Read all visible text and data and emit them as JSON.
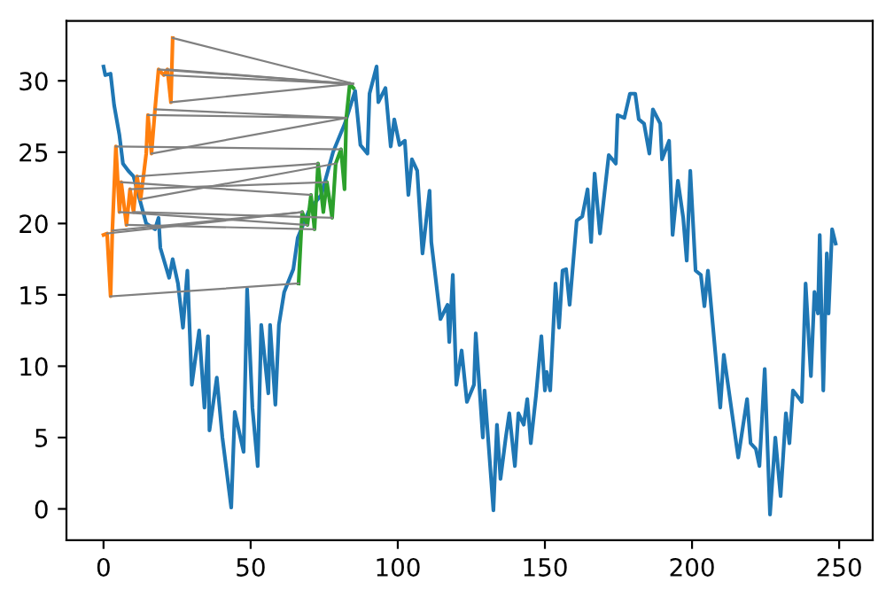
{
  "chart_data": {
    "type": "line",
    "xlim": [
      -12.6,
      261.4
    ],
    "ylim": [
      -2.2,
      34.2
    ],
    "xticks": [
      0,
      50,
      100,
      150,
      200,
      250
    ],
    "yticks": [
      0,
      5,
      10,
      15,
      20,
      25,
      30
    ],
    "grid": false,
    "marker": "none",
    "line_style": "solid",
    "series": [
      {
        "color": "#1f77b4",
        "x": [
          0,
          0.6,
          2.4,
          3.6,
          5.4,
          6.6,
          8.4,
          10.2,
          14.5,
          17.5,
          18.7,
          19.3,
          22.3,
          23.5,
          25.3,
          27,
          28.5,
          30,
          32.5,
          34.3,
          35.5,
          36,
          38.5,
          40.4,
          43.4,
          44.6,
          47.6,
          48.8,
          50.6,
          52.4,
          53.6,
          56,
          56.6,
          58.4,
          59.6,
          61.4,
          64.5,
          66,
          70,
          74,
          78,
          82,
          85.5,
          87.3,
          89.7,
          90.4,
          92.8,
          93.4,
          95.8,
          97.6,
          98.8,
          100.6,
          102.4,
          103.6,
          104.8,
          106.6,
          108.4,
          110.8,
          111.4,
          114.5,
          116.9,
          117.5,
          118.7,
          119.9,
          121.7,
          123.5,
          125.9,
          126.5,
          128.9,
          129.5,
          132.5,
          133.7,
          134.9,
          136.7,
          137.9,
          139.8,
          141,
          142.8,
          144,
          145.2,
          147,
          148.8,
          150,
          150.6,
          151.8,
          153.6,
          154.8,
          156,
          157.2,
          158.4,
          160.8,
          162.7,
          164.5,
          165.7,
          166.9,
          168.7,
          171.7,
          174.1,
          174.7,
          177,
          178.9,
          180.7,
          181.9,
          183.7,
          185.5,
          186.7,
          189.2,
          189.8,
          192.2,
          193.4,
          195.2,
          197,
          198.2,
          199.4,
          201.2,
          203,
          204.2,
          205.4,
          209.6,
          210.8,
          215.7,
          218.7,
          219.9,
          221.7,
          222.9,
          224.7,
          226.5,
          228.3,
          230.1,
          231.9,
          233.1,
          234.3,
          237.3,
          238.6,
          240.4,
          241.6,
          242.8,
          243.4,
          244.6,
          245.8,
          246.4,
          247.6,
          248.8
        ],
        "values": [
          31,
          30.4,
          30.5,
          28.3,
          26.2,
          24.2,
          23.7,
          23.3,
          20,
          19.6,
          20.4,
          18.3,
          16.2,
          17.5,
          15.8,
          12.7,
          16.7,
          8.7,
          12.5,
          7.1,
          12.1,
          5.5,
          9.2,
          5.0,
          0.1,
          6.8,
          4.0,
          15.4,
          7.1,
          3.0,
          12.9,
          8.1,
          12.9,
          7.3,
          12.9,
          15.2,
          16.8,
          19,
          21,
          22,
          25,
          27,
          29.3,
          25.5,
          24.9,
          29.1,
          31.0,
          28.5,
          29.5,
          25.4,
          27.3,
          25.5,
          25.8,
          22.0,
          24.5,
          23.7,
          17.9,
          22.3,
          18.7,
          13.3,
          14.3,
          11.7,
          16.4,
          8.7,
          11.1,
          7.5,
          8.7,
          12.3,
          5.0,
          8.3,
          -0.1,
          5.9,
          2.1,
          5.0,
          6.7,
          3.0,
          6.7,
          5.9,
          7.7,
          4.6,
          8.0,
          12.1,
          8.3,
          9.6,
          8.3,
          15.8,
          12.7,
          16.7,
          16.8,
          14.3,
          20.2,
          20.5,
          22.4,
          18.7,
          23.5,
          19.3,
          24.8,
          24.2,
          27.6,
          27.4,
          29.1,
          29.1,
          27.3,
          27.0,
          24.9,
          28.0,
          27.0,
          24.5,
          25.8,
          19.2,
          23.0,
          20.4,
          17.4,
          23.7,
          16.7,
          16.4,
          14.2,
          16.7,
          7.1,
          10.8,
          3.6,
          7.7,
          4.6,
          4.2,
          3.0,
          9.8,
          -0.4,
          5.0,
          0.9,
          6.7,
          4.6,
          8.3,
          7.5,
          15.8,
          9.3,
          15.2,
          13.7,
          19.2,
          8.3,
          17.9,
          13.7,
          19.6,
          18.6
        ]
      },
      {
        "color": "#ff7f0e",
        "x": [
          0,
          1.2,
          2.4,
          3,
          4.2,
          5.4,
          6,
          7.8,
          9,
          10.2,
          11.4,
          12.6,
          14.5,
          15.1,
          16.3,
          17.5,
          18.7,
          20.5,
          21.7,
          22.9,
          23.5
        ],
        "values": [
          19.2,
          19.3,
          14.9,
          19.5,
          25.4,
          20.8,
          22.9,
          19.9,
          22.4,
          20.8,
          23.3,
          21.7,
          24.9,
          27.6,
          24.9,
          28.0,
          30.8,
          30.4,
          30.8,
          28.5,
          33.0
        ]
      },
      {
        "color": "#2ca02c",
        "x": [
          66.3,
          67.5,
          69.3,
          70.5,
          71.7,
          72.9,
          74.7,
          75.9,
          77.7,
          78.9,
          80.7,
          81.9,
          82.5,
          83.7,
          84.9
        ],
        "values": [
          15.8,
          20.8,
          19.9,
          22.0,
          19.6,
          24.2,
          20.8,
          22.9,
          20.4,
          24.2,
          25.2,
          22.4,
          27.4,
          29.8,
          29.5
        ]
      },
      {
        "color": "#808080",
        "x": [
          23.5,
          84.9
        ],
        "values": [
          33.0,
          29.8
        ]
      },
      {
        "color": "#808080",
        "x": [
          22.9,
          84.9
        ],
        "values": [
          28.5,
          29.8
        ]
      },
      {
        "color": "#808080",
        "x": [
          21.7,
          83.7
        ],
        "values": [
          30.8,
          29.8
        ]
      },
      {
        "color": "#808080",
        "x": [
          20.5,
          83.7
        ],
        "values": [
          30.4,
          29.8
        ]
      },
      {
        "color": "#808080",
        "x": [
          18.7,
          83.7
        ],
        "values": [
          30.8,
          29.8
        ]
      },
      {
        "color": "#808080",
        "x": [
          17.5,
          82.5
        ],
        "values": [
          28.0,
          27.4
        ]
      },
      {
        "color": "#808080",
        "x": [
          15.1,
          82.5
        ],
        "values": [
          27.6,
          27.4
        ]
      },
      {
        "color": "#808080",
        "x": [
          16.3,
          82.5
        ],
        "values": [
          24.9,
          27.4
        ]
      },
      {
        "color": "#808080",
        "x": [
          4.2,
          80.7
        ],
        "values": [
          25.4,
          25.2
        ]
      },
      {
        "color": "#808080",
        "x": [
          12.6,
          78.9
        ],
        "values": [
          21.7,
          24.2
        ]
      },
      {
        "color": "#808080",
        "x": [
          11.4,
          72.9
        ],
        "values": [
          23.3,
          24.2
        ]
      },
      {
        "color": "#808080",
        "x": [
          10.2,
          77.7
        ],
        "values": [
          20.8,
          20.4
        ]
      },
      {
        "color": "#808080",
        "x": [
          9,
          75.9
        ],
        "values": [
          22.4,
          22.9
        ]
      },
      {
        "color": "#808080",
        "x": [
          7.8,
          71.7
        ],
        "values": [
          19.9,
          19.6
        ]
      },
      {
        "color": "#808080",
        "x": [
          6,
          70.5
        ],
        "values": [
          22.9,
          22.0
        ]
      },
      {
        "color": "#808080",
        "x": [
          5.4,
          69.3
        ],
        "values": [
          20.8,
          19.9
        ]
      },
      {
        "color": "#808080",
        "x": [
          3,
          67.5
        ],
        "values": [
          19.5,
          20.8
        ]
      },
      {
        "color": "#808080",
        "x": [
          1.2,
          67.5
        ],
        "values": [
          19.3,
          20.8
        ]
      },
      {
        "color": "#808080",
        "x": [
          2.4,
          66.3
        ],
        "values": [
          14.9,
          15.8
        ]
      }
    ]
  }
}
